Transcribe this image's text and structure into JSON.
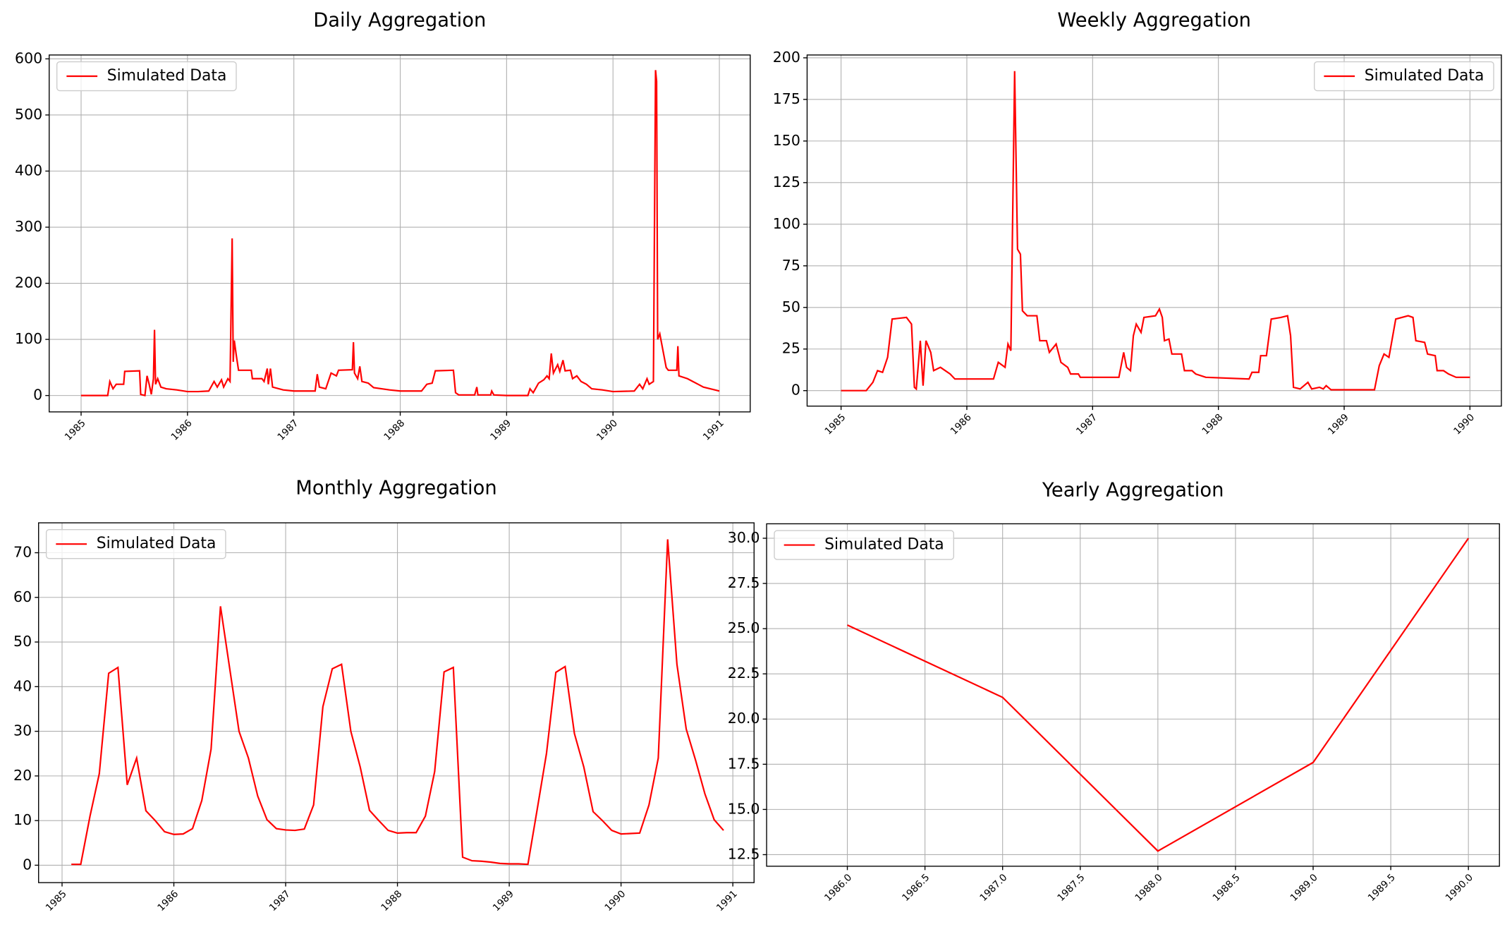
{
  "chart_data": [
    {
      "type": "line",
      "title": "Daily Aggregation",
      "x": [
        1985.0,
        1985.25,
        1985.27,
        1985.3,
        1985.33,
        1985.4,
        1985.41,
        1985.55,
        1985.56,
        1985.6,
        1985.62,
        1985.64,
        1985.66,
        1985.68,
        1985.69,
        1985.7,
        1985.72,
        1985.75,
        1985.8,
        1985.9,
        1986.0,
        1986.1,
        1986.2,
        1986.25,
        1986.28,
        1986.32,
        1986.34,
        1986.38,
        1986.4,
        1986.42,
        1986.43,
        1986.44,
        1986.46,
        1986.48,
        1986.6,
        1986.61,
        1986.7,
        1986.72,
        1986.75,
        1986.76,
        1986.78,
        1986.8,
        1986.9,
        1987.0,
        1987.2,
        1987.22,
        1987.24,
        1987.3,
        1987.35,
        1987.4,
        1987.42,
        1987.55,
        1987.56,
        1987.57,
        1987.6,
        1987.62,
        1987.64,
        1987.7,
        1987.75,
        1987.9,
        1988.0,
        1988.2,
        1988.25,
        1988.3,
        1988.33,
        1988.5,
        1988.52,
        1988.55,
        1988.7,
        1988.72,
        1988.73,
        1988.85,
        1988.86,
        1988.88,
        1989.0,
        1989.2,
        1989.22,
        1989.25,
        1989.3,
        1989.35,
        1989.38,
        1989.4,
        1989.42,
        1989.44,
        1989.48,
        1989.5,
        1989.53,
        1989.55,
        1989.6,
        1989.62,
        1989.66,
        1989.7,
        1989.75,
        1989.8,
        1989.9,
        1990.0,
        1990.2,
        1990.25,
        1990.28,
        1990.32,
        1990.34,
        1990.38,
        1990.4,
        1990.41,
        1990.42,
        1990.44,
        1990.47,
        1990.5,
        1990.52,
        1990.6,
        1990.61,
        1990.62,
        1990.7,
        1990.75,
        1990.8,
        1990.85,
        1991.0
      ],
      "series": [
        {
          "name": "Simulated Data",
          "color": "#ff0000",
          "values": [
            0,
            0,
            25,
            12,
            20,
            20,
            43,
            44,
            2,
            0,
            35,
            20,
            2,
            30,
            117,
            20,
            30,
            15,
            12,
            10,
            7,
            7,
            8,
            25,
            15,
            28,
            15,
            30,
            25,
            280,
            60,
            98,
            70,
            45,
            45,
            30,
            30,
            25,
            48,
            20,
            48,
            15,
            10,
            8,
            8,
            38,
            15,
            12,
            40,
            35,
            45,
            46,
            95,
            40,
            30,
            52,
            25,
            22,
            14,
            10,
            8,
            8,
            20,
            22,
            44,
            45,
            5,
            1,
            1,
            15,
            1,
            1,
            8,
            1,
            0,
            0,
            12,
            5,
            22,
            28,
            35,
            30,
            75,
            40,
            55,
            43,
            63,
            44,
            45,
            30,
            35,
            25,
            20,
            12,
            10,
            7,
            8,
            20,
            12,
            30,
            20,
            25,
            580,
            560,
            100,
            110,
            80,
            50,
            45,
            45,
            88,
            35,
            30,
            25,
            20,
            15,
            8
          ]
        }
      ],
      "xlim": [
        1984.7,
        1991.29
      ],
      "ylim": [
        -29.2,
        606.9
      ],
      "xticks": [
        1985,
        1986,
        1987,
        1988,
        1989,
        1990,
        1991
      ],
      "yticks": [
        0,
        100,
        200,
        300,
        400,
        500,
        600
      ],
      "grid": true,
      "legend": "upper left"
    },
    {
      "type": "line",
      "title": "Weekly Aggregation",
      "x": [
        1985.0,
        1985.2,
        1985.253,
        1985.29,
        1985.33,
        1985.37,
        1985.406,
        1985.52,
        1985.56,
        1985.583,
        1985.598,
        1985.63,
        1985.652,
        1985.675,
        1985.713,
        1985.736,
        1985.79,
        1985.867,
        1985.905,
        1986.212,
        1986.25,
        1986.304,
        1986.327,
        1986.35,
        1986.38,
        1986.403,
        1986.426,
        1986.442,
        1986.48,
        1986.557,
        1986.58,
        1986.633,
        1986.656,
        1986.71,
        1986.748,
        1986.802,
        1986.825,
        1986.887,
        1986.902,
        1987.209,
        1987.247,
        1987.27,
        1987.301,
        1987.324,
        1987.347,
        1987.385,
        1987.408,
        1987.5,
        1987.531,
        1987.554,
        1987.571,
        1987.607,
        1987.63,
        1987.707,
        1987.73,
        1987.79,
        1987.82,
        1987.9,
        1988.244,
        1988.267,
        1988.321,
        1988.336,
        1988.382,
        1988.42,
        1988.497,
        1988.55,
        1988.574,
        1988.597,
        1988.65,
        1988.712,
        1988.742,
        1988.804,
        1988.834,
        1988.857,
        1988.896,
        1989.241,
        1989.279,
        1989.317,
        1989.356,
        1989.41,
        1989.509,
        1989.547,
        1989.57,
        1989.64,
        1989.663,
        1989.724,
        1989.739,
        1989.79,
        1989.83,
        1989.89,
        1990.0
      ],
      "series": [
        {
          "name": "Simulated Data",
          "color": "#ff0000",
          "values": [
            0,
            0,
            5,
            12,
            11,
            20,
            43,
            44,
            40,
            2,
            1,
            30,
            3,
            30,
            23,
            12,
            14,
            10,
            7,
            7,
            17,
            14,
            28,
            24,
            192,
            85,
            82,
            48,
            45,
            45,
            30,
            30,
            23,
            28,
            17,
            14,
            10,
            10,
            8,
            8,
            23,
            14,
            12,
            33,
            40,
            35,
            44,
            45,
            49,
            44,
            30,
            31,
            22,
            22,
            12,
            12,
            10,
            8,
            7,
            11,
            11,
            21,
            21,
            43,
            44,
            45,
            33,
            2,
            1,
            5,
            1,
            2,
            1,
            3,
            0.5,
            0.5,
            15,
            22,
            20,
            43,
            45,
            44,
            30,
            29,
            22,
            21,
            12,
            12,
            10,
            8,
            8
          ]
        }
      ],
      "xlim": [
        1984.73,
        1990.25
      ],
      "ylim": [
        -9.3,
        201.7
      ],
      "xticks": [
        1985,
        1986,
        1987,
        1988,
        1989,
        1990
      ],
      "yticks": [
        0,
        25,
        50,
        75,
        100,
        125,
        150,
        175,
        200
      ],
      "grid": true,
      "legend": "upper right"
    },
    {
      "type": "line",
      "title": "Monthly Aggregation",
      "x": [
        1985.083,
        1985.167,
        1985.25,
        1985.333,
        1985.417,
        1985.5,
        1985.583,
        1985.667,
        1985.75,
        1985.833,
        1985.917,
        1986.0,
        1986.083,
        1986.167,
        1986.25,
        1986.333,
        1986.417,
        1986.5,
        1986.583,
        1986.667,
        1986.75,
        1986.833,
        1986.917,
        1987.0,
        1987.083,
        1987.167,
        1987.25,
        1987.333,
        1987.417,
        1987.5,
        1987.583,
        1987.667,
        1987.75,
        1987.833,
        1987.917,
        1988.0,
        1988.083,
        1988.167,
        1988.25,
        1988.333,
        1988.417,
        1988.5,
        1988.583,
        1988.667,
        1988.75,
        1988.833,
        1988.917,
        1989.0,
        1989.083,
        1989.167,
        1989.25,
        1989.333,
        1989.417,
        1989.5,
        1989.583,
        1989.667,
        1989.75,
        1989.833,
        1989.917,
        1990.0,
        1990.083,
        1990.167,
        1990.25,
        1990.333,
        1990.417,
        1990.5,
        1990.583,
        1990.667,
        1990.75,
        1990.833,
        1990.917
      ],
      "series": [
        {
          "name": "Simulated Data",
          "color": "#ff0000",
          "values": [
            0.2,
            0.2,
            11,
            20.5,
            43,
            44.3,
            18,
            24,
            12.2,
            10,
            7.5,
            6.9,
            7,
            8.2,
            14.5,
            26,
            58,
            44,
            30,
            24,
            15.5,
            10.2,
            8.2,
            7.9,
            7.8,
            8.1,
            13.5,
            35.5,
            44,
            45,
            30,
            22,
            12.3,
            10,
            7.8,
            7.2,
            7.3,
            7.3,
            11,
            21,
            43.3,
            44.3,
            1.8,
            1,
            0.9,
            0.7,
            0.4,
            0.3,
            0.3,
            0.2,
            12.5,
            25,
            43.2,
            44.5,
            29.5,
            22,
            12,
            10,
            7.8,
            7,
            7.1,
            7.2,
            13.5,
            24,
            73,
            45,
            30.5,
            23.5,
            16,
            10.2,
            7.8
          ]
        }
      ],
      "xlim": [
        1984.79,
        1991.19
      ],
      "ylim": [
        -3.9,
        76.7
      ],
      "xticks": [
        1985,
        1986,
        1987,
        1988,
        1989,
        1990,
        1991
      ],
      "yticks": [
        0,
        10,
        20,
        30,
        40,
        50,
        60,
        70
      ],
      "grid": true,
      "legend": "upper left"
    },
    {
      "type": "line",
      "title": "Yearly Aggregation",
      "x": [
        1986,
        1987,
        1988,
        1989,
        1990
      ],
      "series": [
        {
          "name": "Simulated Data",
          "color": "#ff0000",
          "values": [
            25.2,
            21.2,
            12.7,
            17.6,
            30.0
          ]
        }
      ],
      "xlim": [
        1985.48,
        1990.2
      ],
      "ylim": [
        11.86,
        30.8
      ],
      "xticks": [
        {
          "value": 1986,
          "label": "1986.0"
        },
        1986.5,
        {
          "value": 1987,
          "label": "1987.0"
        },
        1987.5,
        {
          "value": 1988,
          "label": "1988.0"
        },
        1988.5,
        {
          "value": 1989,
          "label": "1989.0"
        },
        1989.5,
        {
          "value": 1990,
          "label": "1990.0"
        }
      ],
      "yticks": [
        12.5,
        {
          "value": 15,
          "label": "15.0"
        },
        17.5,
        {
          "value": 20,
          "label": "20.0"
        },
        22.5,
        {
          "value": 25,
          "label": "25.0"
        },
        27.5,
        {
          "value": 30,
          "label": "30.0"
        }
      ],
      "grid": true,
      "legend": "upper left"
    }
  ]
}
